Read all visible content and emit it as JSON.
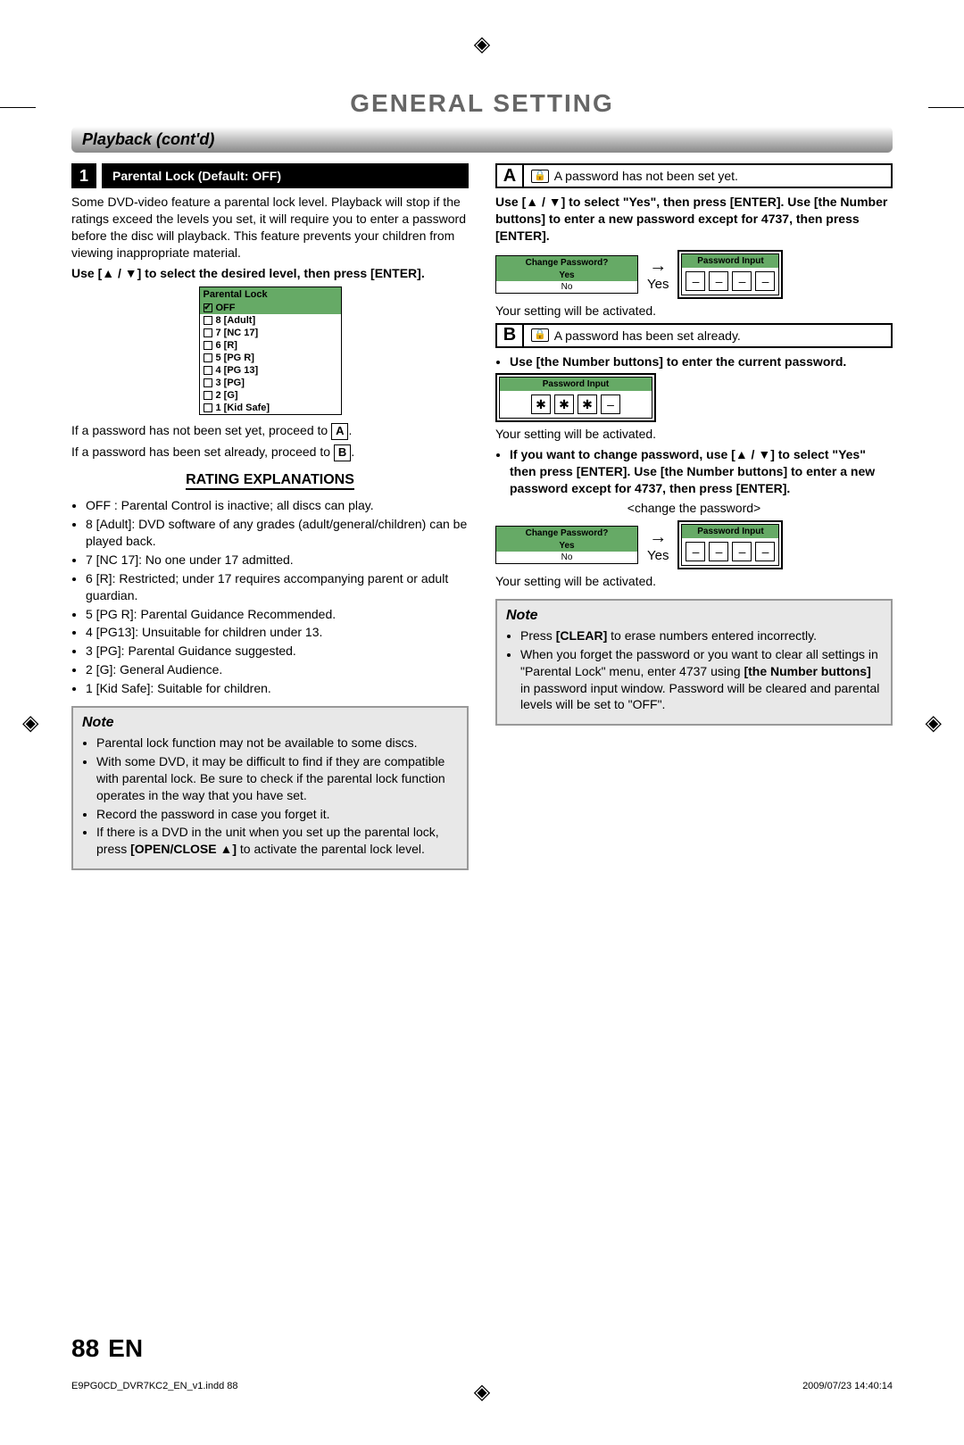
{
  "header": {
    "title": "GENERAL SETTING"
  },
  "section": {
    "title": "Playback (cont'd)"
  },
  "left": {
    "step_num": "1",
    "step_label": "Parental Lock (Default: OFF)",
    "intro": "Some DVD-video feature a parental lock level. Playback will stop if the ratings exceed the levels you set, it will require you to enter a password before the disc will playback. This feature prevents your children from viewing inappropriate material.",
    "instruction": "Use [▲ / ▼] to select the desired level, then press [ENTER].",
    "menu_header": "Parental Lock",
    "menu_items": [
      "OFF",
      "8 [Adult]",
      "7 [NC 17]",
      "6 [R]",
      "5 [PG R]",
      "4 [PG 13]",
      "3 [PG]",
      "2 [G]",
      "1 [Kid Safe]"
    ],
    "proceed_a_pre": "If a password has not been set yet, proceed to ",
    "proceed_a_box": "A",
    "proceed_b_pre": "If a password has been set already, proceed to ",
    "proceed_b_box": "B",
    "rating_head": "RATING EXPLANATIONS",
    "ratings": [
      "OFF : Parental Control is inactive; all discs can play.",
      "8 [Adult]: DVD software of any grades (adult/general/children) can be played back.",
      "7 [NC 17]: No one under 17 admitted.",
      "6 [R]: Restricted; under 17 requires accompanying parent or adult guardian.",
      "5 [PG R]: Parental Guidance Recommended.",
      "4 [PG13]: Unsuitable for children under 13.",
      "3 [PG]: Parental Guidance suggested.",
      "2 [G]: General Audience.",
      "1 [Kid Safe]: Suitable for children."
    ],
    "note_title": "Note",
    "note_items_html": [
      "Parental lock function may not be available to some discs.",
      "With some DVD, it may be difficult to find if they are compatible with parental lock. Be sure to check if the parental lock function operates in the way that you have set.",
      "Record the password in case you forget it.",
      "If there is a DVD in the unit when you set up the parental lock, press <b>[OPEN/CLOSE ▲]</b> to activate the parental lock level."
    ]
  },
  "right": {
    "a_letter": "A",
    "a_text": "A password has not been set yet.",
    "a_instr": "Use [▲ / ▼] to select \"Yes\", then press [ENTER]. Use [the Number buttons] to enter a new password except for 4737, then press [ENTER].",
    "change_hdr": "Change Password?",
    "change_yes": "Yes",
    "change_no": "No",
    "arrow_label": "Yes",
    "pwd_hdr": "Password Input",
    "activated": "Your setting will be activated.",
    "b_letter": "B",
    "b_text": "A password has been set already.",
    "b_instr1": "Use [the Number buttons] to enter the current password.",
    "b_instr2": "If you want to change password, use [▲ / ▼] to select \"Yes\" then press [ENTER]. Use [the Number buttons] to enter a new password except for 4737, then press [ENTER].",
    "change_caption": "<change the password>",
    "note_title": "Note",
    "note_items_html": [
      "Press <b>[CLEAR]</b> to erase numbers entered incorrectly.",
      "When you forget the password or you want to clear all settings in \"Parental Lock\" menu, enter 4737 using <b>[the Number buttons]</b> in password input window. Password will be cleared and parental levels will be set to \"OFF\"."
    ]
  },
  "footer": {
    "page": "88",
    "lang": "EN"
  },
  "meta": {
    "file": "E9PG0CD_DVR7KC2_EN_v1.indd   88",
    "date": "2009/07/23   14:40:14"
  },
  "colors": {
    "accent": "#6a6",
    "note_bg": "#e8e8e8",
    "note_border": "#999"
  }
}
